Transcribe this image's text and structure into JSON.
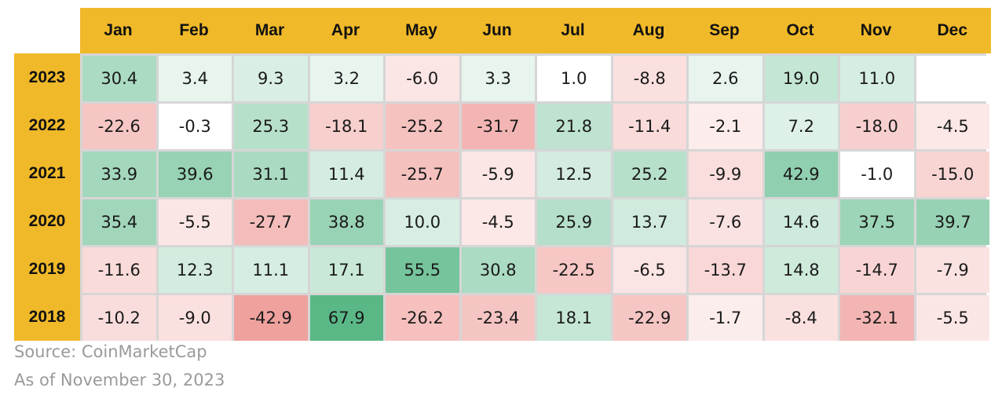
{
  "chart_data": {
    "type": "heatmap",
    "title": "",
    "x_categories": [
      "Jan",
      "Feb",
      "Mar",
      "Apr",
      "May",
      "Jun",
      "Jul",
      "Aug",
      "Sep",
      "Oct",
      "Nov",
      "Dec"
    ],
    "y_categories": [
      "2023",
      "2022",
      "2021",
      "2020",
      "2019",
      "2018"
    ],
    "values": [
      [
        "30.4",
        "3.4",
        "9.3",
        "3.2",
        "-6.0",
        "3.3",
        "1.0",
        "-8.8",
        "2.6",
        "19.0",
        "11.0",
        ""
      ],
      [
        "-22.6",
        "-0.3",
        "25.3",
        "-18.1",
        "-25.2",
        "-31.7",
        "21.8",
        "-11.4",
        "-2.1",
        "7.2",
        "-18.0",
        "-4.5"
      ],
      [
        "33.9",
        "39.6",
        "31.1",
        "11.4",
        "-25.7",
        "-5.9",
        "12.5",
        "25.2",
        "-9.9",
        "42.9",
        "-1.0",
        "-15.0"
      ],
      [
        "35.4",
        "-5.5",
        "-27.7",
        "38.8",
        "10.0",
        "-4.5",
        "25.9",
        "13.7",
        "-7.6",
        "14.6",
        "37.5",
        "39.7"
      ],
      [
        "-11.6",
        "12.3",
        "11.1",
        "17.1",
        "55.5",
        "30.8",
        "-22.5",
        "-6.5",
        "-13.7",
        "14.8",
        "-14.7",
        "-7.9"
      ],
      [
        "-10.2",
        "-9.0",
        "-42.9",
        "67.9",
        "-26.2",
        "-23.4",
        "18.1",
        "-22.9",
        "-1.7",
        "-8.4",
        "-32.1",
        "-5.5"
      ]
    ],
    "colors": {
      "header_bg": "#f0b929",
      "positive_max": "#55b684",
      "negative_max": "#e76e6a",
      "neutral": "#ffffff",
      "grid": "#d6d6d6"
    }
  },
  "notes": {
    "source": "Source: CoinMarketCap",
    "as_of": "As of November 30, 2023"
  }
}
